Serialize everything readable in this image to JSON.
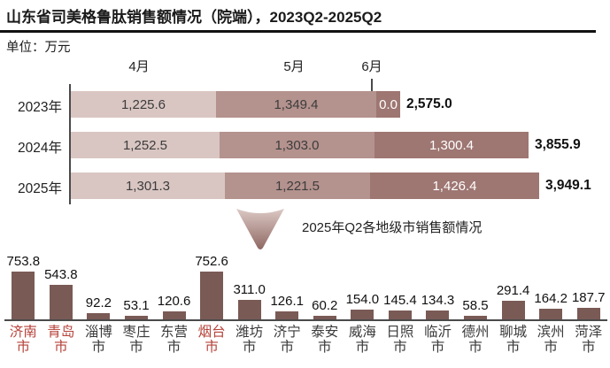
{
  "title": "山东省司美格鲁肽销售额情况（院端），2023Q2-2025Q2",
  "unit_label": "单位：万元",
  "annotation": "2025年Q2各地级市销售额情况",
  "colors": {
    "month_april": "#d9c6c2",
    "month_may": "#b4928e",
    "month_june": "#9e7672",
    "city_bar": "#7a5a55",
    "highlight_city_label": "#b6423a",
    "axis": "#4a4a4a"
  },
  "chart_data": [
    {
      "type": "bar",
      "orientation": "horizontal-stacked",
      "title": "山东省司美格鲁肽销售额情况（院端），2023Q2-2025Q2",
      "ylabel": "万元",
      "categories": [
        "2023年",
        "2024年",
        "2025年"
      ],
      "series": [
        {
          "name": "4月",
          "values": [
            1225.6,
            1252.5,
            1301.3
          ]
        },
        {
          "name": "5月",
          "values": [
            1349.4,
            1303.0,
            1221.5
          ]
        },
        {
          "name": "6月",
          "values": [
            0.0,
            1300.4,
            1426.4
          ]
        }
      ],
      "totals": [
        2575.0,
        3855.9,
        3949.1
      ]
    },
    {
      "type": "bar",
      "orientation": "vertical",
      "title": "2025年Q2各地级市销售额情况",
      "ylabel": "万元",
      "categories": [
        "济南市",
        "青岛市",
        "淄博市",
        "枣庄市",
        "东营市",
        "烟台市",
        "潍坊市",
        "济宁市",
        "泰安市",
        "威海市",
        "日照市",
        "临沂市",
        "德州市",
        "聊城市",
        "滨州市",
        "菏泽市"
      ],
      "values": [
        753.8,
        543.8,
        92.2,
        53.1,
        120.6,
        752.6,
        311.0,
        126.1,
        60.2,
        154.0,
        145.4,
        134.3,
        58.5,
        291.4,
        164.2,
        187.7
      ],
      "highlighted_categories": [
        "济南市",
        "青岛市",
        "烟台市"
      ]
    }
  ]
}
